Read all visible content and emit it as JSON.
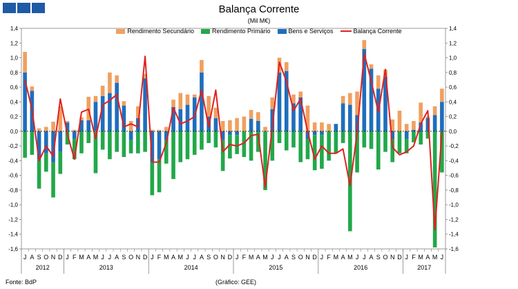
{
  "header": {
    "title": "Balança Corrente",
    "subtitle": "(Mil M€)"
  },
  "footer": {
    "source": "Fonte: BdP",
    "credit": "(Gráfico: GEE)"
  },
  "colors": {
    "secondary": "#f0a060",
    "primary": "#22a84a",
    "goods": "#1f6ebd",
    "balance": "#e02020",
    "brand": "#1f5aa6"
  },
  "chart_data": {
    "type": "bar",
    "title": "Balança Corrente",
    "subtitle": "(Mil M€)",
    "stacked": true,
    "ylim": [
      -1.6,
      1.4
    ],
    "yticks": [
      -1.6,
      -1.4,
      -1.2,
      -1.0,
      -0.8,
      -0.6,
      -0.4,
      -0.2,
      0.0,
      0.2,
      0.4,
      0.6,
      0.8,
      1.0,
      1.2,
      1.4
    ],
    "ytick_labels": [
      "-1,6",
      "-1,4",
      "-1,2",
      "-1,0",
      "-0,8",
      "-0,6",
      "-0,4",
      "-0,2",
      "0,0",
      "0,2",
      "0,4",
      "0,6",
      "0,8",
      "1,0",
      "1,2",
      "1,4"
    ],
    "months": [
      "J",
      "A",
      "S",
      "O",
      "N",
      "D",
      "J",
      "F",
      "M",
      "A",
      "M",
      "J",
      "J",
      "A",
      "S",
      "O",
      "N",
      "D",
      "J",
      "F",
      "M",
      "A",
      "M",
      "J",
      "J",
      "A",
      "S",
      "O",
      "N",
      "D",
      "J",
      "F",
      "M",
      "A",
      "M",
      "J",
      "J",
      "A",
      "S",
      "O",
      "N",
      "D",
      "J",
      "F",
      "M",
      "A",
      "M",
      "J",
      "J",
      "A",
      "S",
      "O",
      "N",
      "D",
      "J",
      "F",
      "M",
      "A",
      "M",
      "J"
    ],
    "years": [
      {
        "label": "2012",
        "start": 0,
        "end": 5
      },
      {
        "label": "2013",
        "start": 6,
        "end": 17
      },
      {
        "label": "2014",
        "start": 18,
        "end": 29
      },
      {
        "label": "2015",
        "start": 30,
        "end": 41
      },
      {
        "label": "2016",
        "start": 42,
        "end": 53
      },
      {
        "label": "2017",
        "start": 54,
        "end": 59
      }
    ],
    "legend": [
      "Rendimento Secundário",
      "Rendimento Primário",
      "Bens e Serviços",
      "Balança Corrente"
    ],
    "series": [
      {
        "name": "Bens e Serviços",
        "kind": "bar",
        "values": [
          0.8,
          0.55,
          -0.38,
          -0.3,
          -0.42,
          -0.28,
          0.12,
          -0.1,
          0.15,
          0.15,
          0.4,
          0.48,
          0.52,
          0.66,
          0.35,
          -0.12,
          0.18,
          0.72,
          -0.42,
          -0.38,
          -0.12,
          0.33,
          0.3,
          0.36,
          0.46,
          0.8,
          0.2,
          0.18,
          -0.12,
          -0.05,
          -0.05,
          0.0,
          0.17,
          0.14,
          0.0,
          0.3,
          0.8,
          0.82,
          0.38,
          0.46,
          -0.1,
          -0.05,
          -0.05,
          0.0,
          0.1,
          0.38,
          0.36,
          0.22,
          1.12,
          0.85,
          0.58,
          0.74,
          -0.1,
          0.0,
          -0.1,
          0.02,
          0.12,
          0.18,
          0.22,
          0.4
        ]
      },
      {
        "name": "Rendimento Primário",
        "kind": "bar",
        "values": [
          -0.36,
          -0.32,
          -0.4,
          -0.25,
          -0.48,
          -0.3,
          -0.18,
          -0.28,
          -0.3,
          -0.16,
          -0.57,
          -0.25,
          -0.38,
          -0.28,
          -0.35,
          -0.18,
          -0.3,
          -0.28,
          -0.45,
          -0.45,
          -0.32,
          -0.65,
          -0.42,
          -0.38,
          -0.32,
          -0.25,
          -0.16,
          -0.22,
          -0.42,
          -0.32,
          -0.26,
          -0.35,
          -0.4,
          -0.28,
          -0.8,
          -0.4,
          -0.16,
          -0.26,
          -0.22,
          -0.42,
          -0.28,
          -0.48,
          -0.46,
          -0.4,
          -0.3,
          -0.16,
          -1.36,
          -0.56,
          -0.22,
          -0.24,
          -0.52,
          -0.28,
          -0.32,
          -0.3,
          -0.2,
          -0.15,
          -0.18,
          -0.1,
          -1.58,
          -0.56
        ]
      },
      {
        "name": "Rendimento Secundário",
        "kind": "bar",
        "values": [
          0.28,
          0.06,
          0.04,
          0.06,
          0.13,
          0.34,
          0.02,
          0.02,
          0.04,
          0.32,
          0.08,
          0.14,
          0.28,
          0.1,
          0.06,
          0.14,
          0.16,
          0.06,
          0.02,
          0.02,
          0.06,
          0.1,
          0.22,
          0.14,
          0.04,
          0.17,
          0.28,
          0.14,
          0.14,
          0.15,
          0.18,
          0.2,
          0.12,
          0.12,
          0.06,
          0.16,
          0.2,
          0.12,
          0.12,
          0.08,
          0.35,
          0.12,
          0.12,
          0.1,
          0.0,
          0.1,
          0.16,
          0.32,
          0.12,
          0.06,
          0.18,
          0.1,
          0.16,
          0.28,
          0.1,
          0.12,
          0.27,
          0.02,
          0.12,
          0.18
        ]
      },
      {
        "name": "Balança Corrente",
        "kind": "line",
        "values": [
          0.7,
          0.3,
          -0.4,
          -0.2,
          -0.34,
          0.44,
          -0.04,
          -0.38,
          0.26,
          0.3,
          -0.1,
          0.36,
          0.42,
          0.5,
          0.06,
          0.1,
          0.06,
          1.02,
          -0.42,
          -0.42,
          -0.16,
          0.32,
          0.1,
          0.14,
          0.2,
          0.56,
          0.06,
          0.56,
          -0.28,
          -0.18,
          -0.2,
          -0.16,
          -0.06,
          -0.04,
          -0.76,
          0.06,
          0.94,
          0.68,
          0.28,
          0.44,
          0.0,
          -0.38,
          -0.2,
          -0.3,
          -0.3,
          -0.24,
          -0.74,
          -0.02,
          1.06,
          0.68,
          0.26,
          0.84,
          -0.22,
          -0.32,
          -0.28,
          -0.2,
          0.1,
          0.28,
          -1.34,
          0.0
        ]
      }
    ]
  }
}
